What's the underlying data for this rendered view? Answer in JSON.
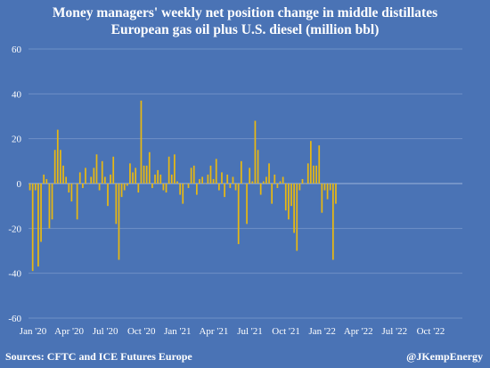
{
  "title_line1": "Money managers' weekly net position change in middle distillates",
  "title_line2": "European gas oil plus U.S. diesel (million bbl)",
  "source": "Sources: CFTC and ICE Futures Europe",
  "handle": "@JKempEnergy",
  "colors": {
    "background": "#4a73b5",
    "bar": "#e8b812",
    "grid": "#6f90c6",
    "zero_line": "#9db5dc",
    "text": "#ffffff"
  },
  "chart_data": {
    "type": "bar",
    "title": "Money managers' weekly net position change in middle distillates",
    "subtitle": "European gas oil plus U.S. diesel (million bbl)",
    "ylim": [
      -60,
      60
    ],
    "yticks": [
      -60,
      -40,
      -20,
      0,
      20,
      40,
      60
    ],
    "xticks": [
      "Jan '20",
      "Apr '20",
      "Jul '20",
      "Oct '20",
      "Jan '21",
      "Apr '21",
      "Jul '21",
      "Oct '21",
      "Jan '22",
      "Apr '22",
      "Jul '22",
      "Oct '22"
    ],
    "x_range_weeks": [
      0,
      156
    ],
    "grid": true,
    "values": [
      -3,
      -39,
      -3,
      -37,
      -26,
      4,
      2,
      -20,
      -16,
      15,
      24,
      15,
      8,
      3,
      -4,
      -8,
      0,
      -16,
      5,
      -2,
      7,
      0,
      3,
      7,
      13,
      -3,
      10,
      3,
      -10,
      4,
      12,
      -18,
      -34,
      -6,
      -3,
      -1,
      9,
      5,
      7,
      -4,
      37,
      8,
      8,
      14,
      -2,
      4,
      6,
      4,
      -3,
      -4,
      12,
      4,
      13,
      1,
      -5,
      -9,
      0,
      -2,
      7,
      8,
      -5,
      2,
      3,
      0,
      4,
      8,
      2,
      11,
      -3,
      5,
      -6,
      4,
      -2,
      3,
      -3,
      -27,
      10,
      0,
      -18,
      7,
      1,
      28,
      15,
      -5,
      1,
      3,
      9,
      -9,
      4,
      -2,
      1,
      3,
      -12,
      -16,
      -10,
      -22,
      -30,
      -3,
      2,
      0,
      9,
      19,
      8,
      8,
      17,
      -13,
      -3,
      -7,
      -3,
      -34,
      -9
    ]
  }
}
